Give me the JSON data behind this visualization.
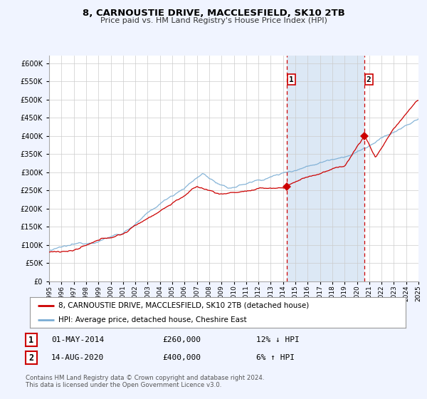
{
  "title": "8, CARNOUSTIE DRIVE, MACCLESFIELD, SK10 2TB",
  "subtitle": "Price paid vs. HM Land Registry's House Price Index (HPI)",
  "bg_color": "#f0f4ff",
  "plot_bg_color": "#ffffff",
  "highlight_bg": "#dce8f5",
  "grid_color": "#cccccc",
  "red_color": "#cc0000",
  "blue_color": "#7aadd4",
  "ylim": [
    0,
    620000
  ],
  "yticks": [
    0,
    50000,
    100000,
    150000,
    200000,
    250000,
    300000,
    350000,
    400000,
    450000,
    500000,
    550000,
    600000
  ],
  "xmin": 1995,
  "xmax": 2025,
  "ann1_x": 2014.33,
  "ann1_y": 260000,
  "ann1_label": "1",
  "ann1_date": "01-MAY-2014",
  "ann1_price": "£260,000",
  "ann1_pct": "12% ↓ HPI",
  "ann2_x": 2020.62,
  "ann2_y": 400000,
  "ann2_label": "2",
  "ann2_date": "14-AUG-2020",
  "ann2_price": "£400,000",
  "ann2_pct": "6% ↑ HPI",
  "legend_line1": "8, CARNOUSTIE DRIVE, MACCLESFIELD, SK10 2TB (detached house)",
  "legend_line2": "HPI: Average price, detached house, Cheshire East",
  "footnote1": "Contains HM Land Registry data © Crown copyright and database right 2024.",
  "footnote2": "This data is licensed under the Open Government Licence v3.0."
}
